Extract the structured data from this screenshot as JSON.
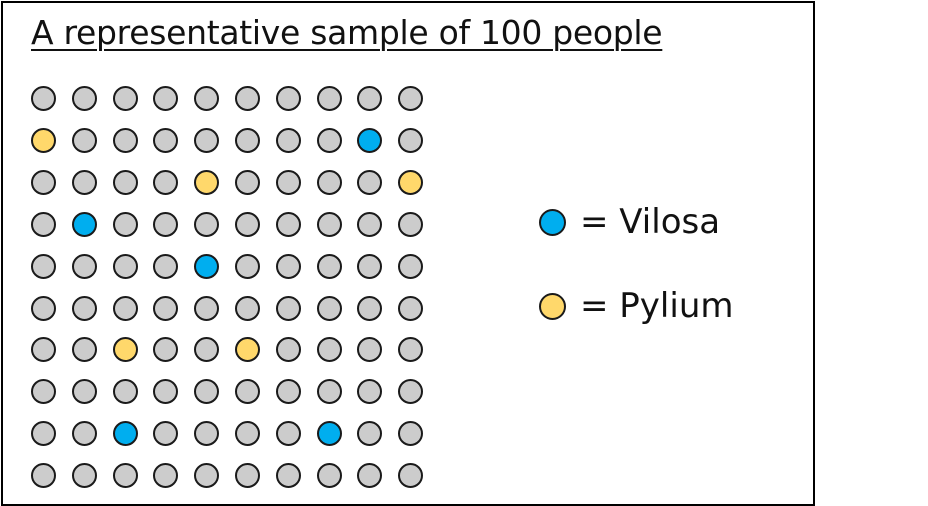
{
  "title": "A representative sample of 100 people",
  "colors": {
    "other": "#cccccc",
    "vilosa": "#00aeef",
    "pylium": "#ffd86b"
  },
  "rows": [
    [
      "o",
      "o",
      "o",
      "o",
      "o",
      "o",
      "o",
      "o",
      "o",
      "o"
    ],
    [
      "p",
      "o",
      "o",
      "o",
      "o",
      "o",
      "o",
      "o",
      "v",
      "o"
    ],
    [
      "o",
      "o",
      "o",
      "o",
      "p",
      "o",
      "o",
      "o",
      "o",
      "p"
    ],
    [
      "o",
      "v",
      "o",
      "o",
      "o",
      "o",
      "o",
      "o",
      "o",
      "o"
    ],
    [
      "o",
      "o",
      "o",
      "o",
      "v",
      "o",
      "o",
      "o",
      "o",
      "o"
    ],
    [
      "o",
      "o",
      "o",
      "o",
      "o",
      "o",
      "o",
      "o",
      "o",
      "o"
    ],
    [
      "o",
      "o",
      "p",
      "o",
      "o",
      "p",
      "o",
      "o",
      "o",
      "o"
    ],
    [
      "o",
      "o",
      "o",
      "o",
      "o",
      "o",
      "o",
      "o",
      "o",
      "o"
    ],
    [
      "o",
      "o",
      "v",
      "o",
      "o",
      "o",
      "o",
      "v",
      "o",
      "o"
    ],
    [
      "o",
      "o",
      "o",
      "o",
      "o",
      "o",
      "o",
      "o",
      "o",
      "o"
    ]
  ],
  "legend": [
    {
      "key": "vilosa",
      "label": "= Vilosa"
    },
    {
      "key": "pylium",
      "label": "= Pylium"
    }
  ]
}
